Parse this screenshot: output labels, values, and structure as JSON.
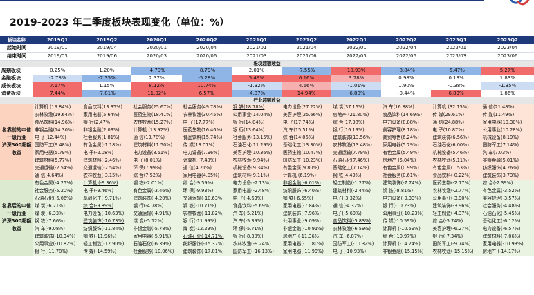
{
  "title": "2019-2023 年二季度板块表现变化（单位：%）",
  "colors": {
    "header": "#1f3a7a",
    "pos_strong": "#f26b6b",
    "neg_strong": "#8fb4e6",
    "top_bg": "#fde4d6",
    "bottom_bg": "#eaf3e2"
  },
  "row_labels": {
    "header": "板块名称",
    "start": "起始时间",
    "end": "结束时间",
    "section_excess": "板块超额收益",
    "section_industry": "行业超额收益",
    "top_group": "名靠前的中信一级行业",
    "top_group2": "沪深300超额收益",
    "bottom_group": "名靠后的中信一级行业",
    "bottom_group2": "沪深300超额收益"
  },
  "chart_data": {
    "type": "table",
    "quarters": [
      "2019Q1",
      "2019Q2",
      "2020Q1",
      "2020Q2",
      "2021Q1",
      "2021Q2",
      "2022Q1",
      "2022Q2",
      "2023Q1",
      "2023Q2"
    ],
    "start": [
      "2019/01",
      "2019/04",
      "2020/01",
      "2020/04",
      "2021/01",
      "2021/04",
      "2022/01",
      "2022/04",
      "2023/01",
      "2023/04"
    ],
    "end": [
      "2019/03",
      "2019/06",
      "2020/03",
      "2020/06",
      "2021/03",
      "2021/06",
      "2022/03",
      "2022/06",
      "2023/03",
      "2023/06"
    ],
    "sectors": [
      {
        "name": "周期板块",
        "values": [
          "0.25%",
          "1.20%",
          "-4.79%",
          "-8.79%",
          "2.01%",
          "-7.55%",
          "10.93%",
          "-8.84%",
          "-5.47%",
          "5.27%"
        ]
      },
      {
        "name": "金融板块",
        "values": [
          "-2.73%",
          "-7.35%",
          "2.37%",
          "-5.28%",
          "5.49%",
          "6.16%",
          "3.78%",
          "0.98%",
          "0.13%",
          "1.83%"
        ]
      },
      {
        "name": "成长板块",
        "values": [
          "7.17%",
          "1.15%",
          "8.12%",
          "10.74%",
          "-1.32%",
          "4.66%",
          "-1.01%",
          "1.90%",
          "-0.38%",
          "-1.35%"
        ]
      },
      {
        "name": "消费板块",
        "values": [
          "7.44%",
          "-7.81%",
          "11.02%",
          "6.57%",
          "-4.37%",
          "14.94%",
          "-6.80%",
          "-0.44%",
          "6.83%",
          "1.86%"
        ]
      }
    ],
    "top_rows": [
      [
        "计算机 (19.84%)",
        "食品饮料(13.35%)",
        "社会服务(25.67%)",
        "社会服务(49.78%)",
        "钢 铁(18.78%)",
        "电力设备(27.22%)",
        "煤 炭(37.16%)",
        "汽 车(16.88%)",
        "计算机 (32.15%)",
        "通 信(21.48%)"
      ],
      [
        "农林牧渔(19.64%)",
        "家用电器(5.64%)",
        "医药生物(18.41%)",
        "农林牧渔(30.45%)",
        "公用事业(14.04%)",
        "美容护理(25.66%)",
        "房地产 (21.80%)",
        "食品饮料(14.69%)",
        "传 媒(29.61%)",
        "传 媒(11.49%)"
      ],
      [
        "食品饮料(14.96%)",
        "银 行(2.47%)",
        "农林牧渔(15.27%)",
        "电 子(17.77%)",
        "银 行(14.04%)",
        "电 子(17.74%)",
        "综 合(17.98%)",
        "电力设备(8.88%)",
        "通 信(24.88%)",
        "家用电器(10.30%)"
      ],
      [
        "非银金融(14.30%)",
        "非银金融(2.03%)",
        "计算机 (13.92%)",
        "医药生物(16.46%)",
        "银 行(13.64%)",
        "汽 车(15.51%)",
        "银 行(16.19%)",
        "美容护理(8.18%)",
        "电 子(10.87%)",
        "公用事业(10.28%)"
      ],
      [
        "电 子(12.44%)",
        "社会服务(1.81%)",
        "通 信(13.78%)",
        "食品饮料(15.74%)",
        "社会服务(13.15%)",
        "综 合(14.06%)",
        "建筑装饰(13.56%)",
        "商贸零售(6.24%)",
        "建筑装饰(6.56%)",
        "机械设备(8.19%)"
      ],
      [
        "国防军工(9.48%)",
        "有色金属(-1.18%)",
        "建筑材料(11.50%)",
        "传 媒(13.01%)",
        "石油石化(11.29%)",
        "基础化工(13.30%)",
        "农林牧渔(13.48%)",
        "家用电器(5.79%)",
        "石油石化(6.00%)",
        "国防军工(7.14%)"
      ],
      [
        "家用电器(5.79%)",
        "电 子(-2.08%)",
        "电力设备(8.51%)",
        "电力设备(7.96%)",
        "美容护理(10.36%)",
        "医药生物(10.47%)",
        "交通运输(7.79%)",
        "有色金属(5.49%)",
        "机械设备(5.46%)",
        "汽 车(7.03%)"
      ],
      [
        "建筑材料(5.77%)",
        "建筑材料(-2.46%)",
        "电 子(8.01%)",
        "计算机 (7.40%)",
        "农林牧渔(9.94%)",
        "国防军工(10.23%)",
        "石油石化(7.46%)",
        "房地产 (5.04%)",
        "农林牧渔(5.11%)",
        "非银金融(5.01%)"
      ],
      [
        "交通运输(-2.54%)",
        "交通运输(-2.54%)",
        "环 保(7.99%)",
        "通 信(4.21%)",
        "机械设备(9.34%)",
        "有色金属(9.80%)",
        "基础化工(7.14%)",
        "有色金属(0.99%)",
        "有色金属(1.53%)",
        "纺织服饰(4.26%)"
      ],
      [
        "通 信(4.64%)",
        "农林牧渔(-3.15%)",
        "综 合(7.52%)",
        "家用电器(4.05%)",
        "建筑材料(9.11%)",
        "计算机 (6.19%)",
        "钢 铁(4.49%)",
        "社会服务(0.61%)",
        "食品饮料(-0.22%)",
        "建筑装饰(3.73%)"
      ]
    ],
    "bottom_rows": [
      [
        "有色金属(-4.25%)",
        "计算机 (-9.36%)",
        "钢 铁(-2.01%)",
        "综 合(-9.59%)",
        "电力设备(-2.13%)",
        "非银金融(-6.01%)",
        "轻工制造(-1.27%)",
        "建筑装饰(-7.74%)",
        "医药生物(-2.77%)",
        "综 合(-2.39%)"
      ],
      [
        "社会服务(-5.20%)",
        "电 子(-9.46%)",
        "有色金属(-3.46%)",
        "环 保(-9.93%)",
        "家用电器(-2.48%)",
        "纺织服饰(-6.40%)",
        "建筑材料(-2.44%)",
        "钢 铁(-8.81%)",
        "农林牧渔(-2.77%)",
        "有色金属(-3.52%)"
      ],
      [
        "石油石化(-6.06%)",
        "基础化工(-9.71%)",
        "建筑装饰(-4.20%)",
        "交通运输(-10.63%)",
        "电 子(-4.63%)",
        "钢 铁(-6.55%)",
        "电子(-3.32%)",
        "电力设备(-9.33%)",
        "公用事业(-3.90%)",
        "美容护理(-3.57%)"
      ],
      [
        "煤 炭(-6.21%)",
        "综 合(-9.89%)",
        "银 行(-4.78%)",
        "钢 铁(-10.71%)",
        "食品饮料(-5.69%)",
        "家用电器(-7.84%)",
        "通 信(-4.32%)",
        "银 行(-10.23%)",
        "建筑装饰(-3.96%)",
        "社会服务(-4.48%)"
      ],
      [
        "煤 炭(-6.33%)",
        "电力设备(-10.63%)",
        "交通运输(-4.91%)",
        "农林牧渔(-11.82%)",
        "汽 车(-5.21%)",
        "建筑装饰(-7.96%)",
        "电子(-5.60%)",
        "公用事业(-10.23%)",
        "轻工制造(-4.37%)",
        "石油石化(-5.45%)"
      ],
      [
        "钢 铁(-7.66%)",
        "建筑装饰(-10.73%)",
        "煤 炭(-5.12%)",
        "银 行(-11.99%)",
        "汽 车(-5.39%)",
        "公用事业(-9.09%)",
        "食品饮料(-5.83%)",
        "传 媒(-10.59%)",
        "综 合(-5.74%)",
        "基础化工(-6.12%)"
      ],
      [
        "汽 车(-9.08%)",
        "纺织服饰(-11.84%)",
        "非银金融(-5.78%)",
        "煤 炭(-12.29%)",
        "环 保(-5.71%)",
        "非银金融(-10.91%)",
        "农林牧渔(-6.59%)",
        "计算机 (-10.59%)",
        "美容护理(-6.27%)",
        "电力设备(-6.57%)"
      ],
      [
        "建筑装饰(-10.34%)",
        "钢 铁(-11.96%)",
        "家用电器(-5.91%)",
        "石油石化(-14.71%)",
        "银 行(-8.30%)",
        "房地产 (-11.36%)",
        "汽 车(-6.87%)",
        "综 合(-10.97%)",
        "银 行(-7.34%)",
        "建筑材料(-7.06%)"
      ],
      [
        "公用事业(-10.82%)",
        "轻工制造(-12.90%)",
        "石油石化(-6.39%)",
        "纺织服饰(-15.37%)",
        "农林牧渔(-9.24%)",
        "家用电器(-11.80%)",
        "国防军工(-10.32%)",
        "计算机 (-14.24%)",
        "国防军工(-9.74%)",
        "家用电器(-10.93%)"
      ],
      [
        "银 行(-11.78%)",
        "传 媒(-14.59%)",
        "社会服务(-10.06%)",
        "建筑装饰(-17.01%)",
        "国防军工(-16.13%)",
        "家用电器(-11.99%)",
        "电 子(-10.93%)",
        "非银金融(-15.15%)",
        "农林牧渔(-15.15%)",
        "房地产 (-14.17%)"
      ]
    ],
    "highlights": {
      "top": [
        [
          0,
          4
        ],
        [
          1,
          4
        ],
        [
          4,
          9
        ],
        [
          6,
          8
        ]
      ],
      "bottom": [
        [
          0,
          1
        ],
        [
          3,
          1
        ],
        [
          4,
          1
        ],
        [
          5,
          1
        ],
        [
          6,
          3
        ],
        [
          7,
          3
        ],
        [
          0,
          5
        ],
        [
          1,
          6
        ],
        [
          4,
          5
        ],
        [
          5,
          6
        ],
        [
          1,
          7
        ]
      ]
    }
  }
}
